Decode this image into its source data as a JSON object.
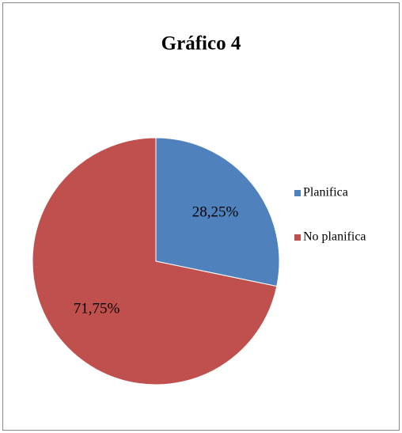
{
  "chart_data": {
    "type": "pie",
    "title": "Gráfico 4",
    "categories": [
      "Planifica",
      "No planifica"
    ],
    "values": [
      28.25,
      71.75
    ],
    "value_labels": [
      "28,25%",
      "71,75%"
    ],
    "colors": [
      "#4f81bd",
      "#c0504d"
    ],
    "legend": "right"
  }
}
